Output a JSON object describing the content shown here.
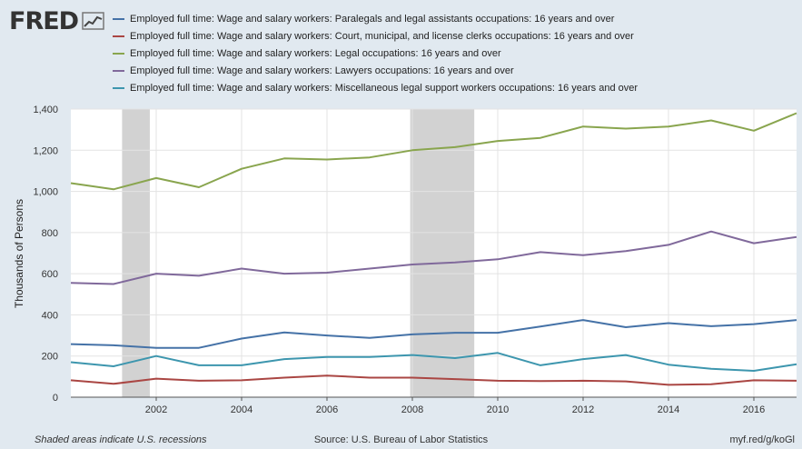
{
  "header": {
    "logo_text": "FRED",
    "logo_icon": "fred-chart-glyph-icon"
  },
  "footer": {
    "recession_note": "Shaded areas indicate U.S. recessions",
    "source": "Source: U.S. Bureau of Labor Statistics",
    "short_url": "myf.red/g/koGl"
  },
  "colors": {
    "background": "#e1e9f0",
    "plot_background": "#ffffff",
    "recession_shade": "#d2d2d2",
    "grid": "#e3e3e3"
  },
  "chart_data": {
    "type": "line",
    "title": "",
    "xlabel": "",
    "ylabel": "Thousands of Persons",
    "x": [
      2000,
      2001,
      2002,
      2003,
      2004,
      2005,
      2006,
      2007,
      2008,
      2009,
      2010,
      2011,
      2012,
      2013,
      2014,
      2015,
      2016,
      2017
    ],
    "xlim": [
      2000,
      2017
    ],
    "x_ticks": [
      "2002",
      "2004",
      "2006",
      "2008",
      "2010",
      "2012",
      "2014",
      "2016"
    ],
    "ylim": [
      0,
      1400
    ],
    "y_ticks": [
      "0",
      "200",
      "400",
      "600",
      "800",
      "1,000",
      "1,200",
      "1,400"
    ],
    "grid": true,
    "legend_placement": "top",
    "recessions": [
      [
        2001.2,
        2001.85
      ],
      [
        2007.95,
        2009.45
      ]
    ],
    "series": [
      {
        "name": "Employed full time: Wage and salary workers: Paralegals and legal assistants occupations: 16 years and over",
        "color": "#4572a7",
        "values": [
          258,
          252,
          240,
          240,
          285,
          315,
          300,
          288,
          305,
          313,
          313,
          343,
          375,
          340,
          360,
          345,
          355,
          375
        ]
      },
      {
        "name": "Employed full time: Wage and salary workers: Court, municipal, and license clerks occupations: 16 years and over",
        "color": "#aa4643",
        "values": [
          82,
          65,
          90,
          80,
          82,
          95,
          105,
          95,
          95,
          88,
          80,
          78,
          80,
          77,
          60,
          63,
          82,
          80
        ]
      },
      {
        "name": "Employed full time: Wage and salary workers: Legal occupations: 16 years and over",
        "color": "#89a54e",
        "values": [
          1040,
          1010,
          1065,
          1020,
          1110,
          1160,
          1155,
          1165,
          1200,
          1215,
          1245,
          1260,
          1315,
          1305,
          1315,
          1345,
          1295,
          1380
        ]
      },
      {
        "name": "Employed full time: Wage and salary workers: Lawyers occupations: 16 years and over",
        "color": "#80699b",
        "values": [
          555,
          550,
          600,
          590,
          625,
          600,
          605,
          625,
          645,
          655,
          670,
          705,
          690,
          710,
          740,
          805,
          748,
          778
        ]
      },
      {
        "name": "Employed full time: Wage and salary workers: Miscellaneous legal support workers occupations: 16 years and over",
        "color": "#3d96ae",
        "values": [
          170,
          150,
          200,
          155,
          155,
          185,
          195,
          195,
          205,
          190,
          215,
          155,
          185,
          205,
          158,
          138,
          128,
          160
        ]
      }
    ]
  }
}
